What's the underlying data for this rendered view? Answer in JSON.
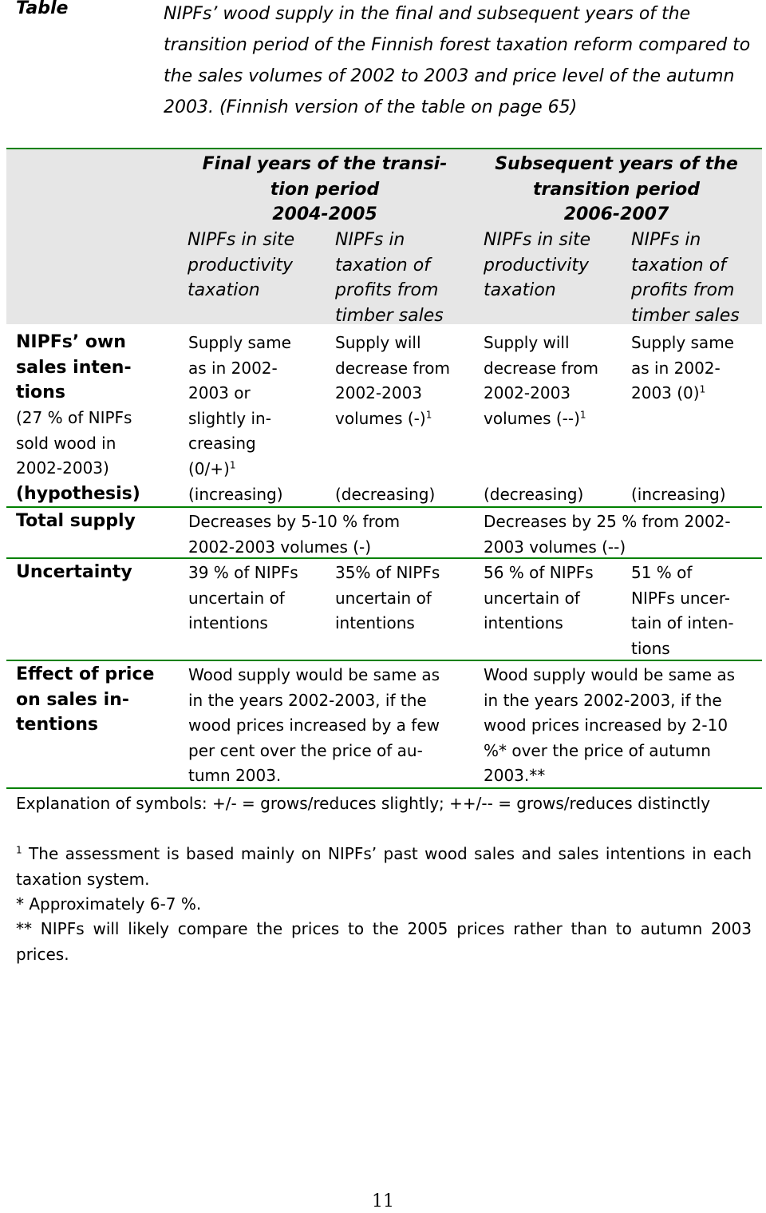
{
  "caption": {
    "label": "Table",
    "text": "NIPFs’ wood supply in the final and subsequent years of the transition period of the Finnish forest taxation reform compared to the sales volumes of 2002 to 2003 and price level of the autumn 2003. (Finnish version of the table on page 65)"
  },
  "header": {
    "group1": "Final years of the transi-\ntion period\n2004-2005",
    "group2": "Subsequent years of the\ntransition period\n2006-2007",
    "col1": "NIPFs in site\nproductivity\ntaxation",
    "col2": "NIPFs in\ntaxation of\nprofits from\ntimber sales",
    "col3": "NIPFs in site\nproductivity\ntaxation",
    "col4": "NIPFs in\ntaxation of\nprofits from\ntimber sales"
  },
  "rows": {
    "intentions": {
      "head": "NIPFs’ own\nsales inten-\ntions",
      "sub": "(27 % of NIPFs\nsold wood in\n2002-2003)",
      "c1": "Supply same\nas in 2002-\n2003 or\nslightly in-\ncreasing\n(0/+)",
      "c2": "Supply will\ndecrease from\n2002-2003\nvolumes (-)",
      "c3": "Supply will\ndecrease from\n2002-2003\nvolumes (--)",
      "c4": "Supply same\nas in 2002-\n2003 (0)",
      "footnote_mark": "1"
    },
    "hypothesis": {
      "head": "(hypothesis)",
      "c1": "(increasing)",
      "c2": "(decreasing)",
      "c3": "(decreasing)",
      "c4": "(increasing)"
    },
    "total": {
      "head": "Total supply",
      "c12": "Decreases by 5-10 % from\n2002-2003 volumes (-)",
      "c34": "Decreases by 25 % from 2002-\n2003 volumes (--)"
    },
    "uncertainty": {
      "head": "Uncertainty",
      "c1": "39 % of NIPFs\nuncertain of\nintentions",
      "c2": "35% of NIPFs\nuncertain of\nintentions",
      "c3": "56 % of NIPFs\nuncertain of\nintentions",
      "c4": "51 % of\nNIPFs uncer-\ntain of inten-\ntions"
    },
    "price": {
      "head": "Effect of price\non sales in-\ntentions",
      "c12": "Wood supply would be same as\nin the years 2002-2003, if the\nwood prices increased by a few\nper cent over the price of au-\ntumn 2003.",
      "c34": "Wood supply would be same as\nin the years 2002-2003, if the\nwood prices increased by 2-10\n%* over the price of autumn\n2003.**"
    }
  },
  "notes": {
    "symbols": "Explanation of symbols: +/- = grows/reduces slightly; ++/-- = grows/reduces distinctly",
    "fn1_mark": "1",
    "fn1": " The assessment is based mainly on NIPFs’ past wood sales and sales intentions in each taxation system.",
    "star": "* Approximately 6-7 %.",
    "dstar": "** NIPFs will likely compare the prices to the 2005 prices rather than to autumn 2003 prices."
  },
  "page_number": "11",
  "colors": {
    "rule": "#008000",
    "header_bg": "#e6e6e6"
  }
}
